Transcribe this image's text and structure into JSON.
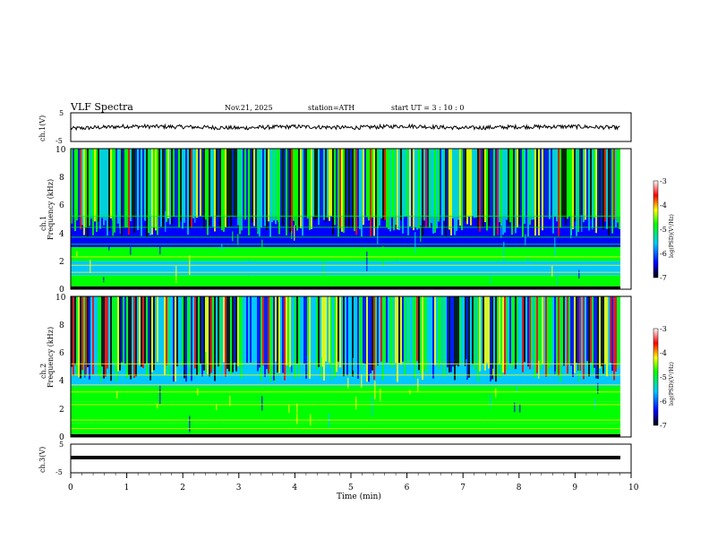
{
  "header": {
    "title": "VLF  Spectra",
    "date": "Nov.21, 2025",
    "station": "station=ATH",
    "start": "start  UT  =    3  : 10 : 0"
  },
  "colors": {
    "low": "#000000",
    "blue": "#0000ff",
    "cyan": "#00c8ff",
    "green": "#00ff00",
    "yellow": "#ffff00",
    "red": "#ff0000",
    "high": "#ffffff"
  },
  "chart_data": [
    {
      "type": "line",
      "panel": "ch1-waveform",
      "ylabel": "ch.1(V)",
      "ylim": [
        -5,
        5
      ],
      "yticks": [
        "5",
        "-5"
      ],
      "x": [
        0,
        1,
        2,
        3,
        4,
        5,
        6,
        7,
        8,
        9,
        10
      ],
      "y": [
        -0.5,
        0.3,
        0.1,
        -0.3,
        0.2,
        -0.2,
        0.4,
        -0.3,
        0.1,
        0.2,
        -0.3
      ]
    },
    {
      "type": "heatmap",
      "panel": "ch1-spectrogram",
      "ylabel_top": "ch.1",
      "ylabel": "Frequency  (kHz)",
      "ylim": [
        0,
        10
      ],
      "yticks": [
        "0",
        "2",
        "4",
        "6",
        "8",
        "10"
      ],
      "colorbar": {
        "label": "log(PSD)(V²/Hz)",
        "range": [
          -7,
          -3
        ],
        "ticks": [
          "-3",
          "-4",
          "-5",
          "-6",
          "-7"
        ]
      },
      "description_values": {
        "freq_bands_khz": [
          [
            0.2,
            1.0
          ],
          [
            1.0,
            2.0
          ],
          [
            2.0,
            3.0
          ],
          [
            3.0,
            5.2
          ],
          [
            5.2,
            10.0
          ]
        ],
        "level_logpsd": [
          -4.5,
          -5.3,
          -5.0,
          -6.3,
          -4.8
        ]
      }
    },
    {
      "type": "heatmap",
      "panel": "ch2-spectrogram",
      "ylabel_top": "ch.2",
      "ylabel": "Frequency  (kHz)",
      "ylim": [
        0,
        10
      ],
      "yticks": [
        "0",
        "2",
        "4",
        "6",
        "8",
        "10"
      ],
      "colorbar": {
        "label": "log(PSD)(V²/Hz)",
        "range": [
          -7,
          -3
        ],
        "ticks": [
          "-3",
          "-4",
          "-5",
          "-6",
          "-7"
        ]
      },
      "description_values": {
        "freq_bands_khz": [
          [
            0.2,
            1.0
          ],
          [
            1.0,
            2.5
          ],
          [
            2.5,
            3.6
          ],
          [
            3.6,
            5.4
          ],
          [
            5.4,
            10.0
          ]
        ],
        "level_logpsd": [
          -4.4,
          -4.9,
          -4.4,
          -5.4,
          -5.6
        ]
      }
    },
    {
      "type": "line",
      "panel": "ch3-waveform",
      "ylabel": "ch.3(V)",
      "ylim": [
        -5,
        5
      ],
      "yticks": [
        "5",
        "-5"
      ],
      "x": [
        0,
        10
      ],
      "y": [
        -1.5,
        -1.5
      ]
    }
  ],
  "xaxis": {
    "label": "Time  (min)",
    "ticks": [
      "0",
      "1",
      "2",
      "3",
      "4",
      "5",
      "6",
      "7",
      "8",
      "9",
      "10"
    ],
    "range": [
      0,
      10
    ]
  }
}
